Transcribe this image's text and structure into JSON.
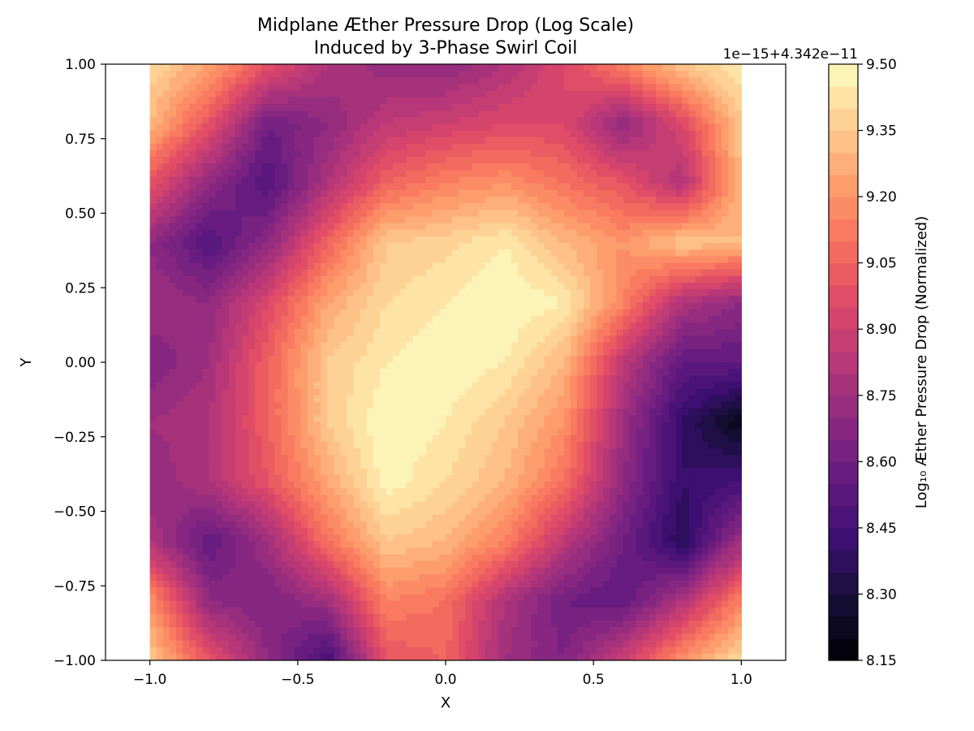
{
  "chart_data": {
    "type": "heatmap",
    "title_lines": [
      "Midplane Æther Pressure Drop (Log Scale)",
      "Induced by 3-Phase Swirl Coil"
    ],
    "xlabel": "X",
    "ylabel": "Y",
    "xlim": [
      -1.15,
      1.15
    ],
    "ylim": [
      -1.0,
      1.0
    ],
    "x_ticks": [
      -1.0,
      -0.5,
      0.0,
      0.5,
      1.0
    ],
    "x_tick_labels": [
      "−1.0",
      "−0.5",
      "0.0",
      "0.5",
      "1.0"
    ],
    "y_ticks": [
      -1.0,
      -0.75,
      -0.5,
      -0.25,
      0.0,
      0.25,
      0.5,
      0.75,
      1.0
    ],
    "y_tick_labels": [
      "−1.00",
      "−0.75",
      "−0.50",
      "−0.25",
      "0.00",
      "0.25",
      "0.50",
      "0.75",
      "1.00"
    ],
    "colorbar": {
      "label": "Log₁₀ Æther Pressure Drop (Normalized)",
      "offset_text": "1e−15+4.342e−11",
      "range": [
        8.15,
        9.5
      ],
      "ticks": [
        8.15,
        8.3,
        8.45,
        8.6,
        8.75,
        8.9,
        9.05,
        9.2,
        9.35,
        9.5
      ],
      "tick_labels": [
        "8.15",
        "8.30",
        "8.45",
        "8.60",
        "8.75",
        "8.90",
        "9.05",
        "9.20",
        "9.35",
        "9.50"
      ],
      "levels": 27,
      "colormap": "magma"
    },
    "grid_x": [
      -1.0,
      -0.8,
      -0.6,
      -0.4,
      -0.2,
      0.0,
      0.2,
      0.4,
      0.6,
      0.8,
      1.0
    ],
    "grid_y": [
      1.0,
      0.8,
      0.6,
      0.4,
      0.2,
      0.0,
      -0.2,
      -0.4,
      -0.6,
      -0.8,
      -1.0
    ],
    "z": [
      [
        9.4,
        9.25,
        9.0,
        8.8,
        8.72,
        8.7,
        8.8,
        8.95,
        9.15,
        9.35,
        9.45
      ],
      [
        9.3,
        9.0,
        8.6,
        8.7,
        8.85,
        8.9,
        8.95,
        8.95,
        8.7,
        8.95,
        9.35
      ],
      [
        9.0,
        8.7,
        8.5,
        8.8,
        9.05,
        9.15,
        9.2,
        9.1,
        9.0,
        8.8,
        9.3
      ],
      [
        8.7,
        8.5,
        8.7,
        9.05,
        9.35,
        9.38,
        9.45,
        9.3,
        9.2,
        9.35,
        9.3
      ],
      [
        8.75,
        8.7,
        8.95,
        9.25,
        9.4,
        9.45,
        9.5,
        9.45,
        9.15,
        8.8,
        8.7
      ],
      [
        8.65,
        8.75,
        9.05,
        9.35,
        9.45,
        9.5,
        9.45,
        9.3,
        8.85,
        8.55,
        8.55
      ],
      [
        8.75,
        8.8,
        9.05,
        9.35,
        9.5,
        9.45,
        9.35,
        9.2,
        8.75,
        8.4,
        8.2
      ],
      [
        8.7,
        8.8,
        9.0,
        9.25,
        9.48,
        9.4,
        9.3,
        9.1,
        8.7,
        8.4,
        8.45
      ],
      [
        8.8,
        8.55,
        8.75,
        9.1,
        9.35,
        9.3,
        9.15,
        8.85,
        8.6,
        8.35,
        8.75
      ],
      [
        9.2,
        8.7,
        8.65,
        8.75,
        9.15,
        9.1,
        8.8,
        8.6,
        8.55,
        8.8,
        9.15
      ],
      [
        9.35,
        9.0,
        8.7,
        8.45,
        9.0,
        9.05,
        8.75,
        8.65,
        8.9,
        9.2,
        9.4
      ]
    ]
  }
}
